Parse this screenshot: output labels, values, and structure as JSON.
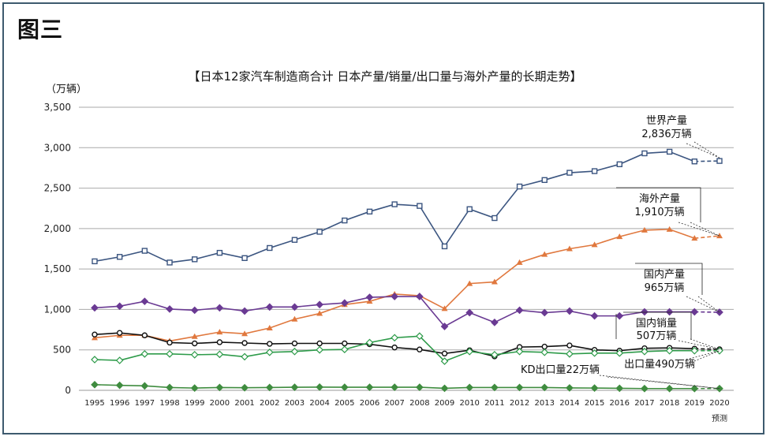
{
  "figure_label": "图三",
  "chart_data": {
    "type": "line",
    "title": "【日本12家汽车制造商合计 日本产量/销量/出口量与海外产量的长期走势】",
    "ylabel": "（万辆）",
    "xlabel": "",
    "ylim": [
      0,
      3500
    ],
    "yticks": [
      0,
      500,
      1000,
      1500,
      2000,
      2500,
      3000,
      3500
    ],
    "ytick_labels": [
      "0",
      "500",
      "1,000",
      "1,500",
      "2,000",
      "2,500",
      "3,000",
      "3,500"
    ],
    "grid": true,
    "x": [
      "1995",
      "1996",
      "1997",
      "1998",
      "1999",
      "2000",
      "2001",
      "2002",
      "2003",
      "2004",
      "2005",
      "2006",
      "2007",
      "2008",
      "2009",
      "2010",
      "2011",
      "2012",
      "2013",
      "2014",
      "2015",
      "2016",
      "2017",
      "2018",
      "2019",
      "2020"
    ],
    "x_note": "预测",
    "forecast_from": "2019",
    "series": [
      {
        "key": "world",
        "color": "#3b5580",
        "marker": "square",
        "values": [
          1595,
          1650,
          1725,
          1580,
          1620,
          1700,
          1635,
          1760,
          1860,
          1960,
          2100,
          2210,
          2300,
          2280,
          1780,
          2240,
          2130,
          2520,
          2600,
          2690,
          2710,
          2795,
          2930,
          2950,
          2830,
          2836
        ]
      },
      {
        "key": "overseas",
        "color": "#e0783e",
        "marker": "triangle",
        "values": [
          650,
          680,
          680,
          610,
          665,
          720,
          700,
          770,
          880,
          950,
          1060,
          1100,
          1190,
          1170,
          1010,
          1320,
          1340,
          1580,
          1680,
          1750,
          1800,
          1900,
          1980,
          1990,
          1880,
          1910
        ]
      },
      {
        "key": "domestic_prod",
        "color": "#6a3a93",
        "marker": "diamond",
        "values": [
          1020,
          1040,
          1100,
          1005,
          990,
          1020,
          980,
          1030,
          1030,
          1060,
          1080,
          1150,
          1160,
          1160,
          790,
          960,
          840,
          990,
          960,
          980,
          920,
          920,
          970,
          970,
          970,
          965
        ]
      },
      {
        "key": "domestic_sales",
        "color": "#111111",
        "marker": "circle",
        "values": [
          690,
          710,
          680,
          590,
          580,
          595,
          585,
          575,
          580,
          580,
          580,
          570,
          530,
          505,
          455,
          495,
          420,
          535,
          540,
          555,
          500,
          490,
          520,
          525,
          515,
          507
        ]
      },
      {
        "key": "exports",
        "color": "#2e9b4a",
        "marker": "diamond",
        "values": [
          380,
          370,
          450,
          450,
          440,
          445,
          415,
          470,
          480,
          500,
          505,
          590,
          650,
          670,
          360,
          480,
          440,
          480,
          470,
          450,
          460,
          460,
          480,
          490,
          490,
          490
        ]
      },
      {
        "key": "kd",
        "color": "#3f8c3f",
        "marker": "diamond",
        "values": [
          70,
          62,
          55,
          35,
          28,
          35,
          32,
          35,
          38,
          40,
          38,
          38,
          38,
          38,
          25,
          35,
          35,
          35,
          35,
          30,
          28,
          25,
          22,
          22,
          22,
          22
        ]
      }
    ],
    "annotations": {
      "world": [
        "世界产量",
        "2,836万辆"
      ],
      "overseas": [
        "海外产量",
        "1,910万辆"
      ],
      "domestic_prod": [
        "国内产量",
        "965万辆"
      ],
      "domestic_sales": [
        "国内销量",
        "507万辆"
      ],
      "exports": "出口量490万辆",
      "kd": "KD出口量22万辆"
    }
  }
}
